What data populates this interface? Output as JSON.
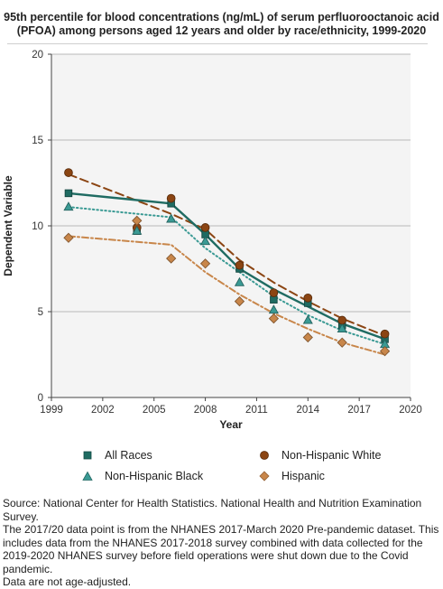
{
  "chart_data": {
    "type": "line",
    "title": "95th percentile for blood concentrations (ng/mL) of serum perfluorooctanoic acid (PFOA) among persons aged 12 years and older by race/ethnicity, 1999-2020",
    "xlabel": "Year",
    "ylabel": "Dependent Variable",
    "xlim": [
      1999,
      2020
    ],
    "ylim": [
      0,
      20
    ],
    "xticks": [
      1999,
      2002,
      2005,
      2008,
      2011,
      2014,
      2017,
      2020
    ],
    "yticks": [
      0,
      5,
      10,
      15,
      20
    ],
    "grid": "horizontal",
    "legend_position": "bottom",
    "series": [
      {
        "name": "All Races",
        "color": "#1f6b62",
        "marker": "square",
        "line": "solid-connecting",
        "points": [
          {
            "x": 2000,
            "y": 11.9
          },
          {
            "x": 2004,
            "y": 9.7
          },
          {
            "x": 2006,
            "y": 11.3
          },
          {
            "x": 2008,
            "y": 9.5
          },
          {
            "x": 2010,
            "y": 7.5
          },
          {
            "x": 2012,
            "y": 5.7
          },
          {
            "x": 2014,
            "y": 5.5
          },
          {
            "x": 2016,
            "y": 4.2
          },
          {
            "x": 2018.5,
            "y": 3.4
          }
        ],
        "line_points": [
          {
            "x": 2000,
            "y": 11.9
          },
          {
            "x": 2006,
            "y": 11.3
          },
          {
            "x": 2008,
            "y": 9.5
          },
          {
            "x": 2010,
            "y": 7.5
          },
          {
            "x": 2012,
            "y": 6.3
          },
          {
            "x": 2014,
            "y": 5.3
          },
          {
            "x": 2016,
            "y": 4.3
          },
          {
            "x": 2018.5,
            "y": 3.4
          }
        ]
      },
      {
        "name": "Non-Hispanic White",
        "color": "#8b4513",
        "marker": "circle",
        "line": "dashed-trend",
        "points": [
          {
            "x": 2000,
            "y": 13.1
          },
          {
            "x": 2004,
            "y": 9.9
          },
          {
            "x": 2006,
            "y": 11.6
          },
          {
            "x": 2008,
            "y": 9.9
          },
          {
            "x": 2010,
            "y": 7.7
          },
          {
            "x": 2012,
            "y": 6.1
          },
          {
            "x": 2014,
            "y": 5.8
          },
          {
            "x": 2016,
            "y": 4.5
          },
          {
            "x": 2018.5,
            "y": 3.7
          }
        ],
        "line_points": [
          {
            "x": 2000,
            "y": 13.0
          },
          {
            "x": 2006,
            "y": 10.7
          },
          {
            "x": 2008,
            "y": 9.8
          },
          {
            "x": 2010,
            "y": 8.0
          },
          {
            "x": 2012,
            "y": 6.7
          },
          {
            "x": 2014,
            "y": 5.6
          },
          {
            "x": 2016,
            "y": 4.6
          },
          {
            "x": 2018.5,
            "y": 3.6
          }
        ]
      },
      {
        "name": "Non-Hispanic Black",
        "color": "#3a9a94",
        "marker": "triangle",
        "line": "dotted-trend",
        "points": [
          {
            "x": 2000,
            "y": 11.1
          },
          {
            "x": 2004,
            "y": 9.7
          },
          {
            "x": 2006,
            "y": 10.4
          },
          {
            "x": 2008,
            "y": 9.1
          },
          {
            "x": 2010,
            "y": 6.7
          },
          {
            "x": 2012,
            "y": 5.1
          },
          {
            "x": 2014,
            "y": 4.5
          },
          {
            "x": 2016,
            "y": 4.0
          },
          {
            "x": 2018.5,
            "y": 3.1
          }
        ],
        "line_points": [
          {
            "x": 2000,
            "y": 11.1
          },
          {
            "x": 2006,
            "y": 10.5
          },
          {
            "x": 2008,
            "y": 8.7
          },
          {
            "x": 2010,
            "y": 7.3
          },
          {
            "x": 2012,
            "y": 5.9
          },
          {
            "x": 2014,
            "y": 4.8
          },
          {
            "x": 2016,
            "y": 3.9
          },
          {
            "x": 2018.5,
            "y": 3.1
          }
        ]
      },
      {
        "name": "Hispanic",
        "color": "#c8864a",
        "marker": "diamond",
        "line": "dashdot-trend",
        "points": [
          {
            "x": 2000,
            "y": 9.3
          },
          {
            "x": 2004,
            "y": 10.3
          },
          {
            "x": 2006,
            "y": 8.1
          },
          {
            "x": 2008,
            "y": 7.8
          },
          {
            "x": 2010,
            "y": 5.6
          },
          {
            "x": 2012,
            "y": 4.6
          },
          {
            "x": 2014,
            "y": 3.5
          },
          {
            "x": 2016,
            "y": 3.2
          },
          {
            "x": 2018.5,
            "y": 2.7
          }
        ],
        "line_points": [
          {
            "x": 2000,
            "y": 9.4
          },
          {
            "x": 2006,
            "y": 8.9
          },
          {
            "x": 2008,
            "y": 7.3
          },
          {
            "x": 2010,
            "y": 6.0
          },
          {
            "x": 2012,
            "y": 4.9
          },
          {
            "x": 2014,
            "y": 4.0
          },
          {
            "x": 2016,
            "y": 3.2
          },
          {
            "x": 2018.5,
            "y": 2.5
          }
        ]
      }
    ]
  },
  "source_notes": [
    "Source: National Center for Health Statistics. National Health and Nutrition Examination Survey.",
    "The 2017/20 data point is from the NHANES 2017-March 2020 Pre-pandemic dataset. This includes data from the NHANES 2017-2018 survey combined with data collected for the 2019-2020 NHANES survey before field operations were shut down due to the Covid pandemic.",
    "Data are not age-adjusted."
  ]
}
